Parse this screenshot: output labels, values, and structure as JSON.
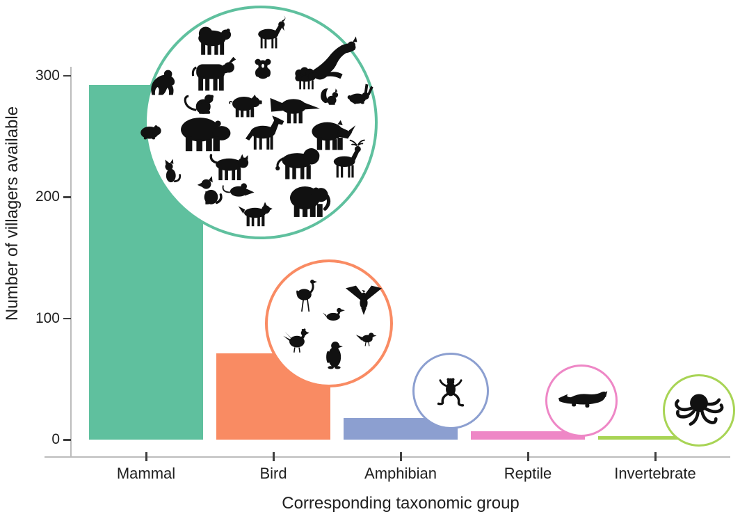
{
  "chart_data": {
    "type": "bar",
    "title": "",
    "categories": [
      "Mammal",
      "Bird",
      "Amphibian",
      "Reptile",
      "Invertebrate"
    ],
    "values": [
      292,
      71,
      18,
      7,
      3
    ],
    "xlabel": "Corresponding taxonomic group",
    "ylabel": "Number of villagers available",
    "ylim": [
      0,
      300
    ],
    "yticks": [
      0,
      100,
      200,
      300
    ],
    "grid": false,
    "legend": false,
    "bar_colors": [
      "#5fc09e",
      "#f98b63",
      "#8c9fd0",
      "#ee87c6",
      "#a8d455"
    ],
    "icon_circles": [
      {
        "category": "Mammal",
        "border_color": "#5fc09e",
        "animals": [
          "bear",
          "goat",
          "kangaroo",
          "gorilla",
          "cow",
          "koala",
          "sheep",
          "squirrel",
          "rabbit",
          "monkey",
          "pig",
          "anteater",
          "guineapig",
          "hippo",
          "horse",
          "rhino",
          "cat",
          "tiger",
          "lion",
          "deer",
          "dog",
          "mouse",
          "wolf",
          "elephant"
        ]
      },
      {
        "category": "Bird",
        "border_color": "#f98b63",
        "animals": [
          "ostrich",
          "eagle",
          "duck",
          "chicken",
          "penguin",
          "sparrow"
        ]
      },
      {
        "category": "Amphibian",
        "border_color": "#8c9fd0",
        "animals": [
          "frog"
        ]
      },
      {
        "category": "Reptile",
        "border_color": "#ee87c6",
        "animals": [
          "crocodile"
        ]
      },
      {
        "category": "Invertebrate",
        "border_color": "#a8d455",
        "animals": [
          "octopus"
        ]
      }
    ]
  },
  "axis": {
    "line_color": "#bcbcbc",
    "tick_color": "#3f3f3f",
    "text_color": "#202020"
  }
}
